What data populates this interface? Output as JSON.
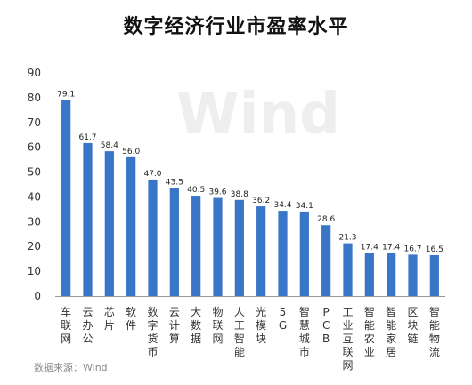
{
  "chart_data": {
    "type": "bar",
    "title": "数字经济行业市盈率水平",
    "categories": [
      "车联网",
      "云办公",
      "芯片",
      "软件",
      "数字货币",
      "云计算",
      "大数据",
      "物联网",
      "人工智能",
      "光模块",
      "5G",
      "智慧城市",
      "PCB",
      "工业互联网",
      "智能农业",
      "智能家居",
      "区块链",
      "智能物流"
    ],
    "values": [
      79.1,
      61.7,
      58.4,
      56.0,
      47.0,
      43.5,
      40.5,
      39.6,
      38.8,
      36.2,
      34.4,
      34.1,
      28.6,
      21.3,
      17.4,
      17.4,
      16.7,
      16.5
    ],
    "value_labels": [
      "79.1",
      "61.7",
      "58.4",
      "56.0",
      "47.0",
      "43.5",
      "40.5",
      "39.6",
      "38.8",
      "36.2",
      "34.4",
      "34.1",
      "28.6",
      "21.3",
      "17.4",
      "17.4",
      "16.7",
      "16.5"
    ],
    "yticks": [
      "0",
      "10",
      "20",
      "30",
      "40",
      "50",
      "60",
      "70",
      "80",
      "90"
    ],
    "ylim": [
      0,
      90
    ],
    "grid": false,
    "legend": "none",
    "bar_color": "#3a76c8",
    "source": "数据来源：Wind",
    "watermark": "Wind"
  }
}
